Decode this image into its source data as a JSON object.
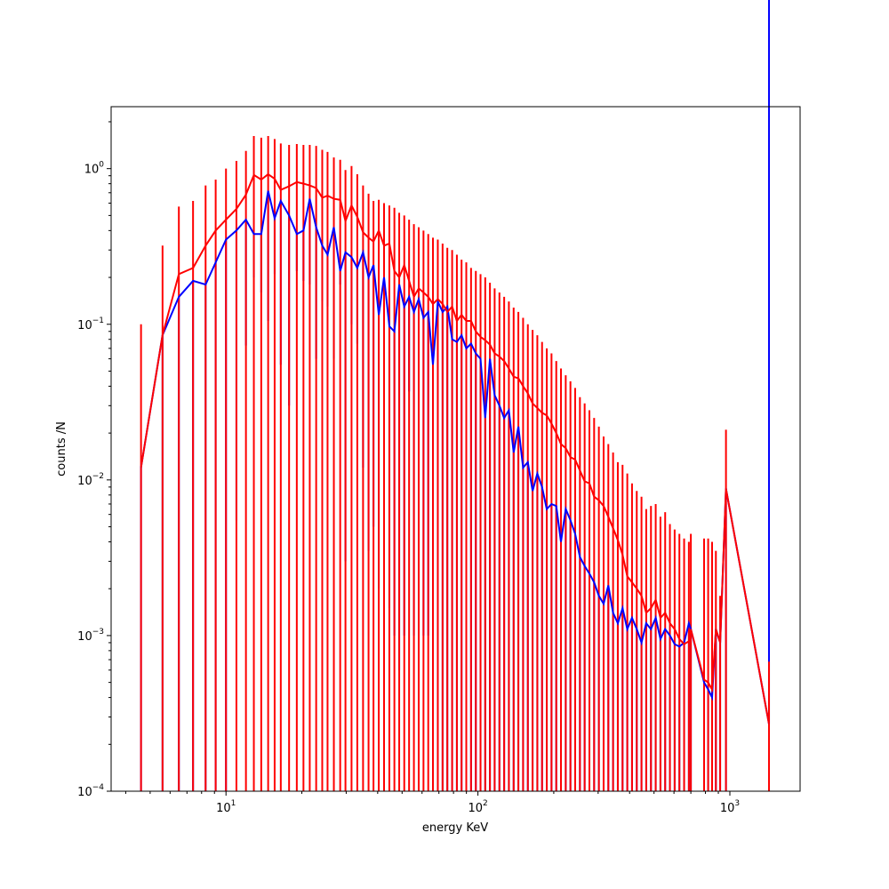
{
  "chart_data": {
    "type": "line",
    "xlabel": "energy KeV",
    "ylabel": "counts /N",
    "x_scale": "log",
    "y_scale": "log",
    "xlim": [
      3.5,
      1900
    ],
    "ylim": [
      0.0001,
      2.5
    ],
    "grid": false,
    "x_ticks": [
      {
        "value": 10,
        "mant": "10",
        "exp": "1"
      },
      {
        "value": 100,
        "mant": "10",
        "exp": "2"
      },
      {
        "value": 1000,
        "mant": "10",
        "exp": "3"
      }
    ],
    "y_ticks": [
      {
        "value": 0.0001,
        "mant": "10",
        "exp": "−4"
      },
      {
        "value": 0.001,
        "mant": "10",
        "exp": "−3"
      },
      {
        "value": 0.01,
        "mant": "10",
        "exp": "−2"
      },
      {
        "value": 0.1,
        "mant": "10",
        "exp": "−1"
      },
      {
        "value": 1,
        "mant": "10",
        "exp": "0"
      }
    ],
    "series": [
      {
        "color": "#ff0000",
        "style": "line-with-errorbars",
        "x": [
          4.6,
          5.6,
          6.5,
          7.4,
          8.3,
          9.1,
          10.0,
          11.0,
          12.0,
          12.9,
          13.8,
          14.7,
          15.6,
          16.5,
          17.8,
          19.1,
          20.3,
          21.5,
          22.8,
          24.1,
          25.3,
          26.8,
          28.4,
          29.8,
          31.5,
          33.2,
          35.0,
          36.8,
          38.5,
          40.4,
          42.4,
          44.5,
          46.6,
          48.7,
          51.0,
          53.3,
          55.7,
          58.2,
          60.8,
          63.5,
          66.3,
          69.3,
          72.4,
          75.6,
          79.0,
          82.5,
          86.1,
          89.9,
          93.9,
          98.1,
          102.4,
          106.9,
          111.6,
          116.5,
          121.7,
          127.1,
          132.7,
          138.6,
          144.7,
          151.1,
          157.8,
          164.8,
          172.1,
          179.7,
          187.6,
          195.9,
          204.6,
          213.6,
          223.1,
          232.9,
          243.2,
          254.0,
          265.2,
          277.0,
          289.2,
          302.0,
          315.4,
          329.3,
          343.9,
          359.1,
          375.0,
          391.6,
          408.9,
          427.0,
          445.9,
          465.6,
          486.2,
          507.7,
          530.2,
          553.6,
          578.1,
          603.7,
          630.4,
          658.3,
          687.4,
          700.0,
          790.0,
          820.0,
          850.0,
          880.0,
          915.0,
          965.0,
          1430.0
        ],
        "y": [
          0.012,
          0.085,
          0.21,
          0.23,
          0.32,
          0.4,
          0.47,
          0.55,
          0.68,
          0.91,
          0.85,
          0.92,
          0.86,
          0.73,
          0.77,
          0.82,
          0.8,
          0.78,
          0.75,
          0.65,
          0.67,
          0.64,
          0.63,
          0.46,
          0.58,
          0.49,
          0.39,
          0.36,
          0.34,
          0.4,
          0.32,
          0.33,
          0.22,
          0.2,
          0.24,
          0.19,
          0.15,
          0.17,
          0.16,
          0.15,
          0.135,
          0.145,
          0.135,
          0.12,
          0.13,
          0.105,
          0.115,
          0.105,
          0.105,
          0.09,
          0.083,
          0.079,
          0.074,
          0.065,
          0.062,
          0.058,
          0.052,
          0.046,
          0.045,
          0.04,
          0.036,
          0.031,
          0.029,
          0.027,
          0.026,
          0.023,
          0.02,
          0.017,
          0.016,
          0.014,
          0.0135,
          0.0115,
          0.0098,
          0.0095,
          0.0078,
          0.0074,
          0.0068,
          0.0058,
          0.0049,
          0.0041,
          0.0033,
          0.0024,
          0.0022,
          0.002,
          0.0018,
          0.0014,
          0.0015,
          0.0017,
          0.0013,
          0.0014,
          0.0012,
          0.0011,
          0.00095,
          0.00088,
          0.00092,
          0.0011,
          0.00052,
          0.0005,
          0.00045,
          0.0011,
          0.0009,
          0.0088,
          0.00027
        ],
        "yerr_upper": [
          0.1,
          0.32,
          0.57,
          0.62,
          0.78,
          0.85,
          1.0,
          1.12,
          1.3,
          1.62,
          1.58,
          1.62,
          1.55,
          1.45,
          1.42,
          1.44,
          1.42,
          1.42,
          1.4,
          1.32,
          1.28,
          1.18,
          1.14,
          0.98,
          1.04,
          0.92,
          0.78,
          0.69,
          0.62,
          0.63,
          0.6,
          0.58,
          0.56,
          0.52,
          0.5,
          0.47,
          0.44,
          0.42,
          0.4,
          0.38,
          0.36,
          0.35,
          0.33,
          0.31,
          0.3,
          0.28,
          0.26,
          0.25,
          0.23,
          0.22,
          0.21,
          0.2,
          0.185,
          0.17,
          0.16,
          0.15,
          0.14,
          0.128,
          0.12,
          0.11,
          0.1,
          0.092,
          0.085,
          0.077,
          0.07,
          0.065,
          0.058,
          0.052,
          0.047,
          0.043,
          0.039,
          0.034,
          0.031,
          0.028,
          0.025,
          0.022,
          0.019,
          0.017,
          0.015,
          0.013,
          0.0125,
          0.011,
          0.0095,
          0.0085,
          0.0078,
          0.0065,
          0.0068,
          0.007,
          0.0058,
          0.0062,
          0.0052,
          0.0048,
          0.0045,
          0.0042,
          0.004,
          0.0045,
          0.0042,
          0.0042,
          0.004,
          0.0035,
          0.0018,
          0.021,
          0.00068
        ]
      },
      {
        "color": "#0000ff",
        "style": "line-with-errorbars",
        "x": [
          4.6,
          5.6,
          6.5,
          7.4,
          8.3,
          9.1,
          10.0,
          11.0,
          12.0,
          12.9,
          13.8,
          14.7,
          15.6,
          16.5,
          17.8,
          19.1,
          20.3,
          21.5,
          22.8,
          24.1,
          25.3,
          26.8,
          28.4,
          29.8,
          31.5,
          33.2,
          35.0,
          36.8,
          38.5,
          40.4,
          42.4,
          44.5,
          46.6,
          48.7,
          51.0,
          53.3,
          55.7,
          58.2,
          60.8,
          63.5,
          66.3,
          69.3,
          72.4,
          75.6,
          79.0,
          82.5,
          86.1,
          89.9,
          93.9,
          98.1,
          102.4,
          106.9,
          111.6,
          116.5,
          121.7,
          127.1,
          132.7,
          138.6,
          144.7,
          151.1,
          157.8,
          164.8,
          172.1,
          179.7,
          187.6,
          195.9,
          204.6,
          213.6,
          223.1,
          232.9,
          243.2,
          254.0,
          265.2,
          277.0,
          289.2,
          302.0,
          315.4,
          329.3,
          343.9,
          359.1,
          375.0,
          391.6,
          408.9,
          427.0,
          445.9,
          465.6,
          486.2,
          507.7,
          530.2,
          553.6,
          578.1,
          603.7,
          630.4,
          658.3,
          687.4,
          700.0,
          790.0,
          820.0,
          850.0,
          880.0,
          915.0,
          965.0,
          1430.0
        ],
        "y": [
          0.012,
          0.085,
          0.15,
          0.19,
          0.18,
          0.25,
          0.35,
          0.4,
          0.47,
          0.38,
          0.38,
          0.72,
          0.48,
          0.62,
          0.5,
          0.38,
          0.4,
          0.64,
          0.42,
          0.32,
          0.28,
          0.42,
          0.22,
          0.29,
          0.27,
          0.23,
          0.29,
          0.2,
          0.24,
          0.115,
          0.2,
          0.097,
          0.09,
          0.18,
          0.13,
          0.15,
          0.12,
          0.145,
          0.11,
          0.12,
          0.055,
          0.14,
          0.12,
          0.13,
          0.08,
          0.077,
          0.085,
          0.07,
          0.075,
          0.065,
          0.06,
          0.025,
          0.06,
          0.035,
          0.03,
          0.025,
          0.028,
          0.015,
          0.022,
          0.012,
          0.013,
          0.0085,
          0.011,
          0.009,
          0.0065,
          0.007,
          0.0068,
          0.004,
          0.0065,
          0.0055,
          0.0045,
          0.0032,
          0.0028,
          0.0025,
          0.0022,
          0.0018,
          0.0016,
          0.0021,
          0.0014,
          0.0012,
          0.0015,
          0.0011,
          0.0013,
          0.0011,
          0.0009,
          0.0012,
          0.0011,
          0.0013,
          0.00095,
          0.0011,
          0.001,
          0.00088,
          0.00085,
          0.0009,
          0.0012,
          0.0011,
          0.0005,
          0.00045,
          0.0004,
          0.0011,
          0.0009,
          0.0088,
          0.00027
        ],
        "yerr_lower": [
          0.0001,
          0.0001,
          0.0001,
          0.0001,
          0.0001,
          0.0001,
          0.0001,
          0.0055,
          0.073,
          0.2,
          0.16,
          0.105,
          0.21,
          0.055,
          0.03,
          0.22,
          0.19,
          0.18,
          0.06,
          0.14,
          0.13,
          0.06,
          0.18,
          0.003,
          0.1,
          0.075,
          0.012,
          0.0035,
          0.005,
          0.002,
          0.01,
          0.0015,
          0.001,
          0.0006,
          0.001,
          0.037,
          0.001,
          0.0001,
          0.001,
          0.001,
          0.0001,
          0.0001,
          0.0001,
          0.0001,
          0.0001,
          0.0001,
          0.0001,
          0.0001,
          0.0001,
          0.0001,
          0.0001,
          0.0001,
          0.0001,
          0.0001,
          0.0001,
          0.0001,
          0.0001,
          0.0001,
          0.0001,
          0.0001,
          0.0001,
          0.0001,
          0.0001,
          0.0001,
          0.0001,
          0.0001,
          0.0001,
          0.0001,
          0.0001,
          0.0001,
          0.0001,
          0.0001,
          0.0001,
          0.0001,
          0.0001,
          0.0001,
          0.0001,
          0.0001,
          0.0001,
          0.0001,
          0.0001,
          0.0001,
          0.0001,
          0.0001,
          0.0001,
          0.0001,
          0.0001,
          0.0001,
          0.0001,
          0.0001,
          0.0001,
          0.0001,
          0.0001,
          0.0001,
          0.0001,
          0.0001,
          0.0001,
          0.0001,
          0.0001,
          0.0001,
          0.0001,
          0.0001
        ]
      }
    ]
  }
}
